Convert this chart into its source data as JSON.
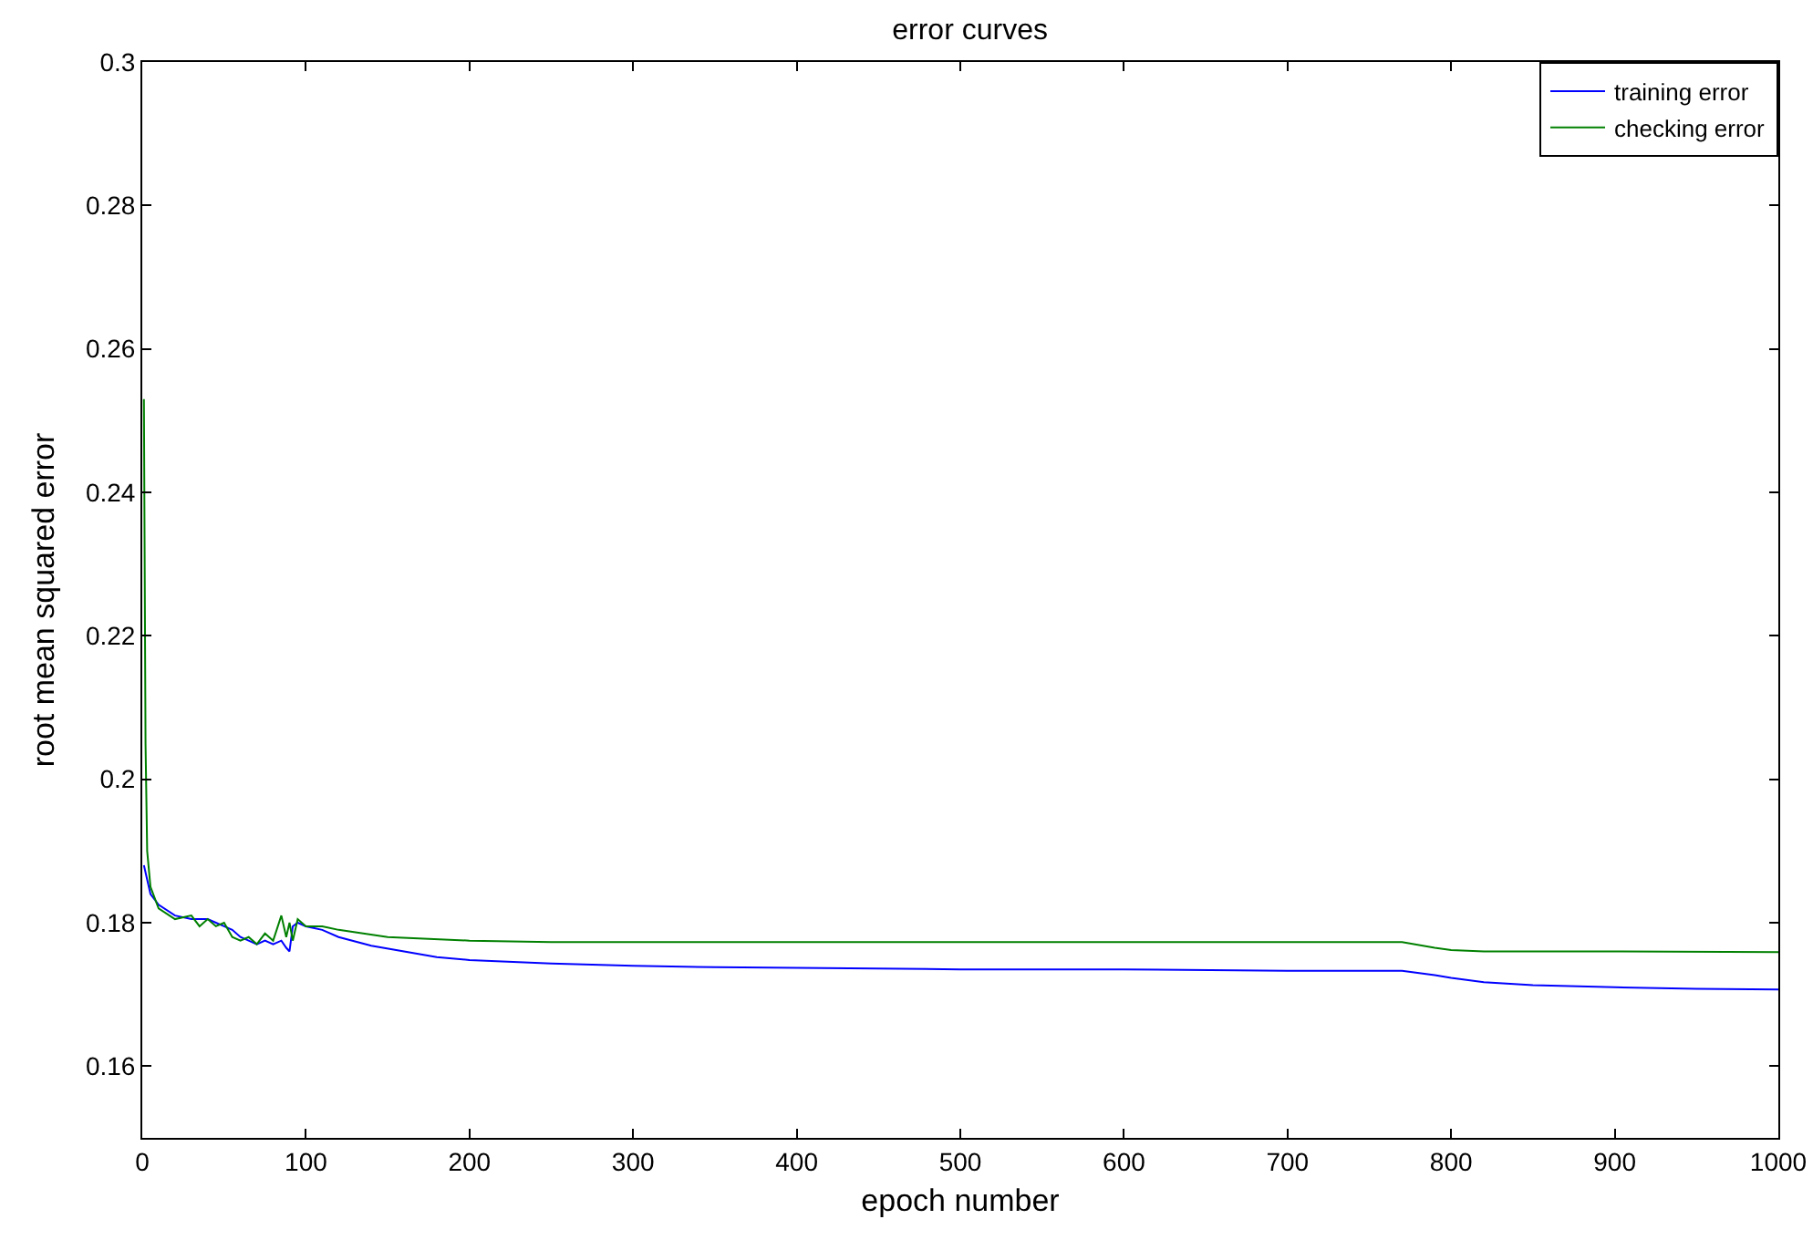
{
  "chart_data": {
    "type": "line",
    "title": "error curves",
    "xlabel": "epoch number",
    "ylabel": "root mean squared error",
    "xlim": [
      0,
      1000
    ],
    "xticks": [
      0,
      100,
      200,
      300,
      400,
      500,
      600,
      700,
      800,
      900,
      1000
    ],
    "ylim": [
      0.15,
      0.3
    ],
    "yticks": [
      0.16,
      0.18,
      0.2,
      0.22,
      0.24,
      0.26,
      0.28,
      0.3
    ],
    "grid": false,
    "legend": "top right",
    "marker": "none",
    "line_style": "solid",
    "series": [
      {
        "name": "training error",
        "color": "#0000ff",
        "x": [
          1,
          3,
          5,
          10,
          20,
          30,
          40,
          45,
          50,
          55,
          60,
          65,
          70,
          75,
          80,
          85,
          88,
          90,
          92,
          95,
          100,
          110,
          120,
          140,
          160,
          180,
          200,
          250,
          300,
          350,
          400,
          500,
          600,
          700,
          770,
          790,
          800,
          820,
          850,
          900,
          950,
          1000
        ],
        "values": [
          0.188,
          0.186,
          0.184,
          0.1825,
          0.181,
          0.1805,
          0.1805,
          0.18,
          0.1795,
          0.179,
          0.178,
          0.1775,
          0.177,
          0.1775,
          0.177,
          0.1775,
          0.1765,
          0.176,
          0.1795,
          0.18,
          0.1795,
          0.179,
          0.178,
          0.1768,
          0.176,
          0.1752,
          0.1748,
          0.1743,
          0.174,
          0.1738,
          0.1737,
          0.1735,
          0.1735,
          0.1733,
          0.1733,
          0.1727,
          0.1723,
          0.1717,
          0.1713,
          0.171,
          0.1708,
          0.1707
        ]
      },
      {
        "name": "checking error",
        "color": "#008000",
        "x": [
          1,
          2,
          3,
          5,
          10,
          20,
          30,
          35,
          40,
          45,
          50,
          55,
          60,
          65,
          70,
          75,
          80,
          85,
          88,
          90,
          92,
          95,
          100,
          110,
          120,
          150,
          200,
          250,
          300,
          500,
          770,
          790,
          800,
          820,
          900,
          1000
        ],
        "values": [
          0.253,
          0.205,
          0.19,
          0.185,
          0.182,
          0.1805,
          0.181,
          0.1795,
          0.1805,
          0.1795,
          0.18,
          0.178,
          0.1775,
          0.178,
          0.177,
          0.1785,
          0.1775,
          0.181,
          0.178,
          0.18,
          0.1775,
          0.1805,
          0.1795,
          0.1795,
          0.179,
          0.178,
          0.1775,
          0.1773,
          0.1773,
          0.1773,
          0.1773,
          0.1765,
          0.1762,
          0.176,
          0.176,
          0.1759
        ]
      }
    ]
  }
}
